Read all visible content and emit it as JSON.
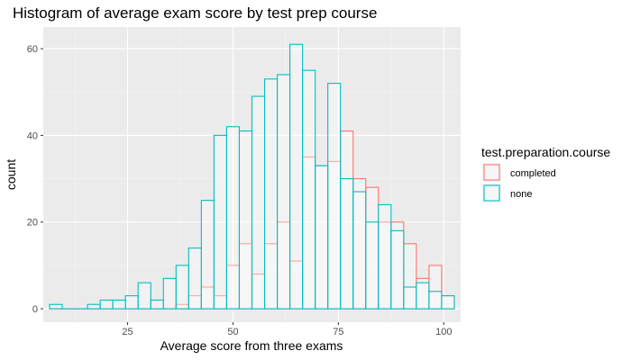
{
  "chart_data": {
    "type": "bar",
    "title": "Histogram of average exam score by test prep course",
    "xlabel": "Average score from three exams",
    "ylabel": "count",
    "xlim": [
      5,
      104
    ],
    "ylim": [
      -3.1,
      65
    ],
    "x_ticks": [
      25,
      50,
      75,
      100
    ],
    "y_ticks": [
      0,
      20,
      40,
      60
    ],
    "bin_width": 3,
    "bin_centers": [
      8,
      11,
      14,
      17,
      20,
      23,
      26,
      29,
      32,
      35,
      38,
      41,
      44,
      47,
      50,
      53,
      56,
      59,
      62,
      65,
      68,
      71,
      74,
      77,
      80,
      83,
      86,
      89,
      92,
      95,
      98,
      101
    ],
    "grid": true,
    "legend": {
      "title": "test.preparation.course",
      "position": "right"
    },
    "series": [
      {
        "name": "completed",
        "color": "#F8766D",
        "values": [
          0,
          0,
          0,
          0,
          0,
          0,
          0,
          0,
          0,
          0,
          1,
          3,
          5,
          3,
          10,
          15,
          8,
          15,
          20,
          11,
          35,
          33,
          34,
          41,
          30,
          28,
          20,
          20,
          15,
          7,
          10,
          3
        ]
      },
      {
        "name": "none",
        "color": "#00BFC4",
        "values": [
          1,
          0,
          0,
          1,
          2,
          2,
          3,
          6,
          2,
          7,
          10,
          14,
          25,
          40,
          42,
          41,
          49,
          53,
          54,
          61,
          55,
          33,
          52,
          30,
          27,
          20,
          24,
          18,
          5,
          6,
          4,
          3
        ]
      }
    ]
  }
}
